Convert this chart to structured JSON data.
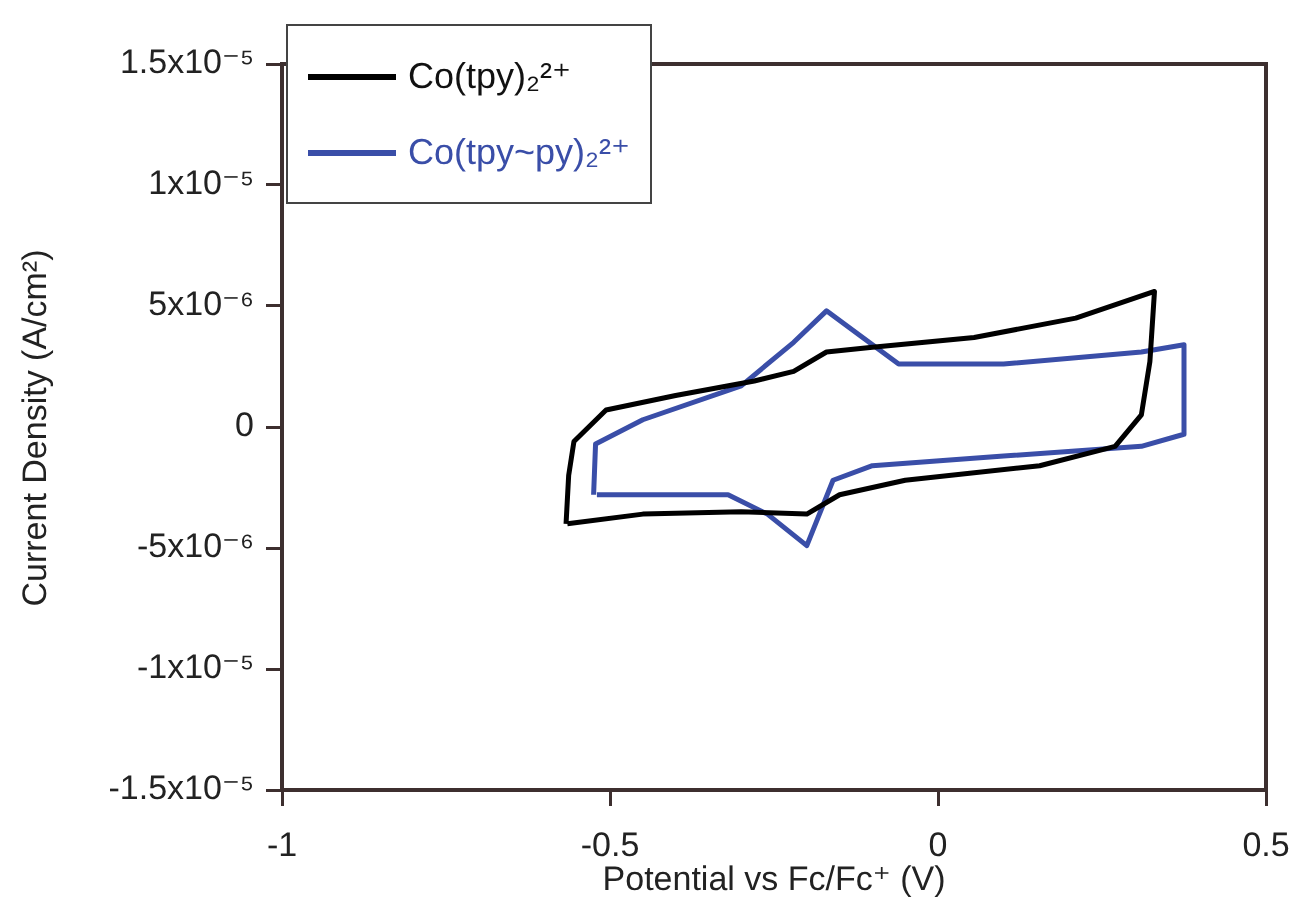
{
  "chart_data": {
    "type": "line",
    "xlabel": "Potential vs Fc/Fc⁺ (V)",
    "ylabel": "Current Density (A/cm²)",
    "xlim": [
      -1,
      0.5
    ],
    "xticks": [
      -1,
      -0.5,
      0,
      0.5
    ],
    "ylim": [
      -1.5e-05,
      1.5e-05
    ],
    "yticks": [
      {
        "value": -1.5e-05,
        "label": "-1.5x10⁻⁵"
      },
      {
        "value": -1e-05,
        "label": "-1x10⁻⁵"
      },
      {
        "value": -5e-06,
        "label": "-5x10⁻⁶"
      },
      0,
      {
        "value": 5e-06,
        "label": "5x10⁻⁶"
      },
      {
        "value": 1e-05,
        "label": "1x10⁻⁵"
      },
      {
        "value": 1.5e-05,
        "label": "1.5x10⁻⁵"
      }
    ],
    "grid": false,
    "legend": "top left",
    "marker": "none",
    "line_style": "solid",
    "series": [
      {
        "name": "Co(tpy)₂²⁺",
        "color": "#000000",
        "x": [
          -0.567,
          -0.563,
          -0.555,
          -0.506,
          -0.4,
          -0.28,
          -0.22,
          -0.17,
          -0.1,
          0.055,
          0.21,
          0.33,
          0.323,
          0.31,
          0.27,
          0.155,
          -0.05,
          -0.15,
          -0.2,
          -0.3,
          -0.45,
          -0.565
        ],
        "values": [
          -4e-06,
          -2e-06,
          -6e-07,
          7e-07,
          1.3e-06,
          1.9e-06,
          2.3e-06,
          3.1e-06,
          3.3e-06,
          3.7e-06,
          4.5e-06,
          5.6e-06,
          2.7e-06,
          5e-07,
          -8e-07,
          -1.6e-06,
          -2.2e-06,
          -2.8e-06,
          -3.6e-06,
          -3.5e-06,
          -3.6e-06,
          -4e-06
        ]
      },
      {
        "name": "Co(tpy~py)₂²⁺",
        "color": "#3a4ea8",
        "x": [
          -0.525,
          -0.522,
          -0.45,
          -0.3,
          -0.22,
          -0.17,
          -0.12,
          -0.06,
          0.1,
          0.31,
          0.375,
          0.375,
          0.31,
          0.1,
          -0.1,
          -0.16,
          -0.2,
          -0.26,
          -0.32,
          -0.52
        ],
        "values": [
          -2.8e-06,
          -7e-07,
          3e-07,
          1.7e-06,
          3.5e-06,
          4.8e-06,
          3.8e-06,
          2.6e-06,
          2.6e-06,
          3.1e-06,
          3.4e-06,
          -3e-07,
          -8e-07,
          -1.2e-06,
          -1.6e-06,
          -2.2e-06,
          -4.9e-06,
          -3.6e-06,
          -2.8e-06,
          -2.8e-06
        ]
      }
    ]
  }
}
